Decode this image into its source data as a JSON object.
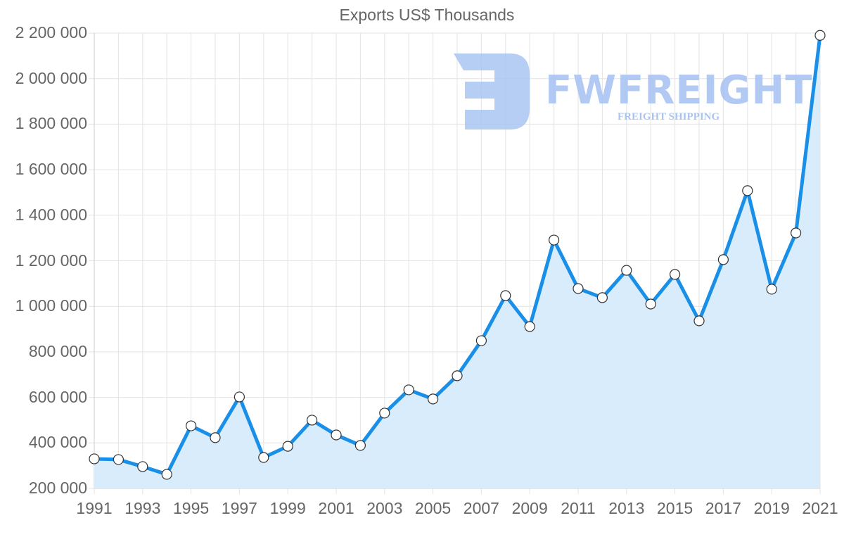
{
  "chart_data": {
    "type": "line",
    "title": "Exports US$ Thousands",
    "xlabel": "",
    "ylabel": "",
    "ylim": [
      200000,
      2200000
    ],
    "grid": true,
    "legend": null,
    "fill": true,
    "x": [
      1991,
      1992,
      1993,
      1994,
      1995,
      1996,
      1997,
      1998,
      1999,
      2000,
      2001,
      2002,
      2003,
      2004,
      2005,
      2006,
      2007,
      2008,
      2009,
      2010,
      2011,
      2012,
      2013,
      2014,
      2015,
      2016,
      2017,
      2018,
      2019,
      2020,
      2021
    ],
    "series": [
      {
        "name": "Exports US$ Thousands",
        "color": "#1a8fe8",
        "fill_color": "#d9ecfc",
        "values": [
          330000,
          327000,
          296000,
          262000,
          475000,
          423000,
          602000,
          336000,
          385000,
          500000,
          435000,
          389000,
          531000,
          633000,
          593000,
          695000,
          849000,
          1047000,
          911000,
          1291000,
          1078000,
          1038000,
          1158000,
          1010000,
          1140000,
          936000,
          1205000,
          1508000,
          1075000,
          1322000,
          2190000
        ]
      }
    ],
    "y_ticks": [
      "2 200 000",
      "2 000 000",
      "1 800 000",
      "1 600 000",
      "1 400 000",
      "1 200 000",
      "1 000 000",
      "800 000",
      "600 000",
      "400 000",
      "200 000"
    ],
    "x_ticks": [
      "1991",
      "1993",
      "1995",
      "1997",
      "1999",
      "2001",
      "2003",
      "2005",
      "2007",
      "2009",
      "2011",
      "2013",
      "2015",
      "2017",
      "2019",
      "2021"
    ]
  },
  "watermark": {
    "brand": "FWFREIGHT",
    "tagline": "FREIGHT SHIPPING"
  }
}
